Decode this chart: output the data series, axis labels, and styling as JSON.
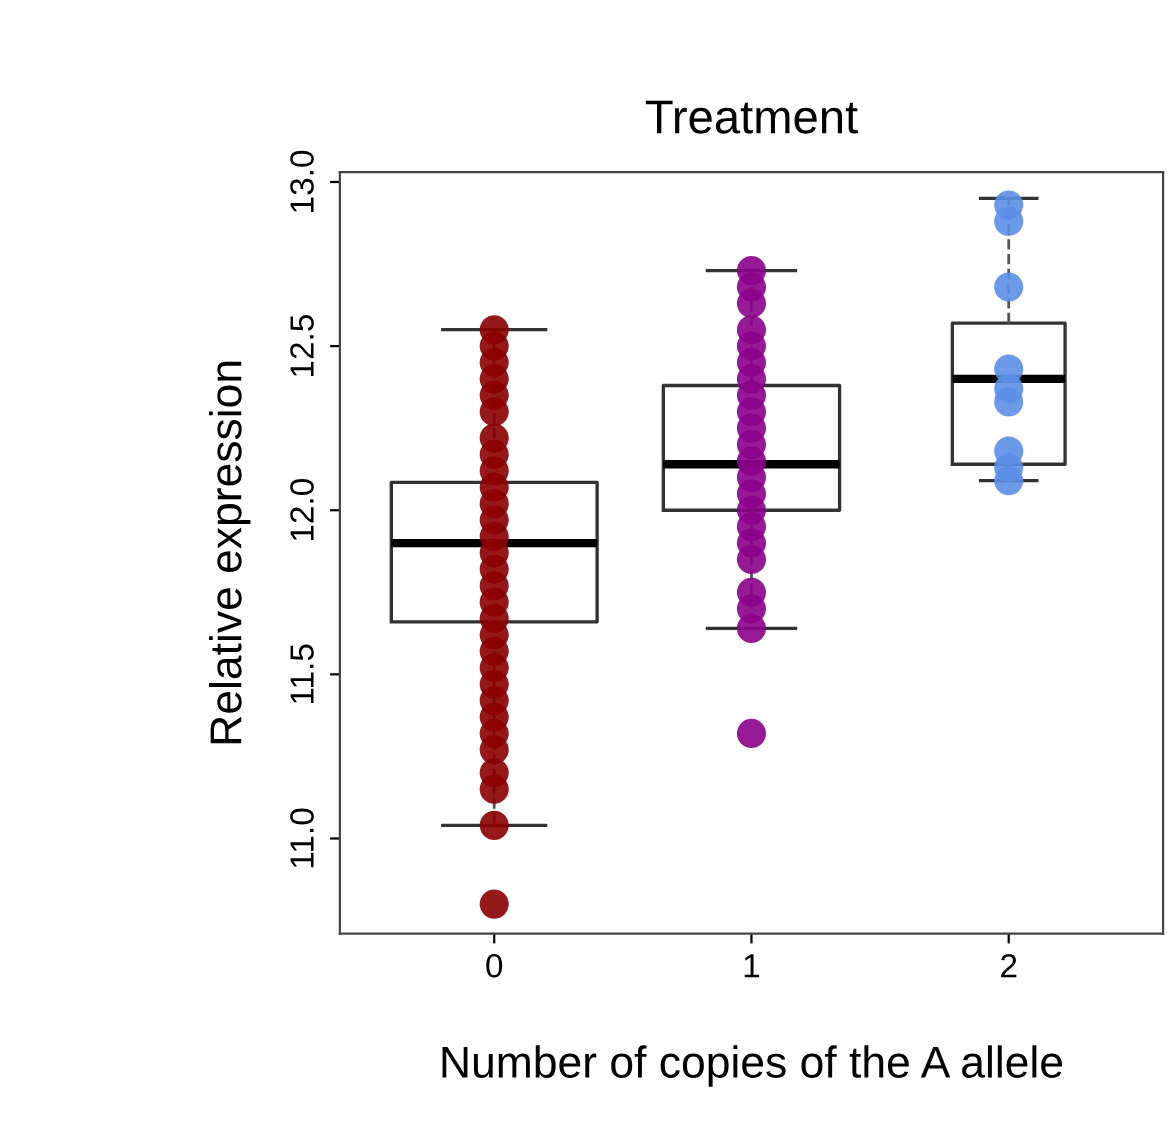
{
  "chart_data": {
    "type": "box",
    "title": "Treatment",
    "xlabel": "Number of copies of the A allele",
    "ylabel": "Relative expression",
    "categories": [
      "0",
      "1",
      "2"
    ],
    "boxes": [
      {
        "low": 11.04,
        "q1": 11.66,
        "median": 11.9,
        "q3": 12.085,
        "high": 12.55
      },
      {
        "low": 11.64,
        "q1": 12.0,
        "median": 12.14,
        "q3": 12.38,
        "high": 12.73
      },
      {
        "low": 12.09,
        "q1": 12.14,
        "median": 12.4,
        "q3": 12.57,
        "high": 12.95
      }
    ],
    "series": [
      {
        "type": "scatter",
        "color": "#8b0000",
        "x": [
          "0",
          "0",
          "0",
          "0",
          "0",
          "0",
          "0",
          "0",
          "0",
          "0",
          "0",
          "0",
          "0",
          "0",
          "0",
          "0",
          "0",
          "0",
          "0",
          "0",
          "0",
          "0",
          "0",
          "0",
          "0",
          "0",
          "0",
          "0",
          "0",
          "0"
        ],
        "values": [
          12.55,
          12.5,
          12.45,
          12.4,
          12.35,
          12.3,
          12.22,
          12.17,
          12.12,
          12.07,
          12.02,
          11.97,
          11.92,
          11.87,
          11.82,
          11.77,
          11.72,
          11.67,
          11.62,
          11.57,
          11.52,
          11.47,
          11.42,
          11.37,
          11.32,
          11.27,
          11.2,
          11.15,
          11.04,
          10.8
        ]
      },
      {
        "type": "scatter",
        "color": "#8b008b",
        "x": [
          "1",
          "1",
          "1",
          "1",
          "1",
          "1",
          "1",
          "1",
          "1",
          "1",
          "1",
          "1",
          "1",
          "1",
          "1",
          "1",
          "1",
          "1",
          "1",
          "1",
          "1",
          "1"
        ],
        "values": [
          12.73,
          12.68,
          12.63,
          12.55,
          12.5,
          12.45,
          12.4,
          12.35,
          12.3,
          12.25,
          12.2,
          12.15,
          12.1,
          12.05,
          12.0,
          11.95,
          11.9,
          11.85,
          11.75,
          11.7,
          11.64,
          11.32
        ]
      },
      {
        "type": "scatter",
        "color": "#5b8fe6",
        "x": [
          "2",
          "2",
          "2",
          "2",
          "2",
          "2",
          "2",
          "2",
          "2"
        ],
        "values": [
          12.93,
          12.88,
          12.68,
          12.43,
          12.37,
          12.33,
          12.18,
          12.13,
          12.09
        ]
      }
    ],
    "ylim": [
      10.71,
      13.03
    ],
    "yticks": [
      {
        "value": 11,
        "label": "11.0"
      },
      11.5,
      {
        "value": 12,
        "label": "12.0"
      },
      12.5,
      {
        "value": 13,
        "label": "13.0"
      }
    ],
    "grid": false,
    "legend": false,
    "marker": "circle"
  }
}
